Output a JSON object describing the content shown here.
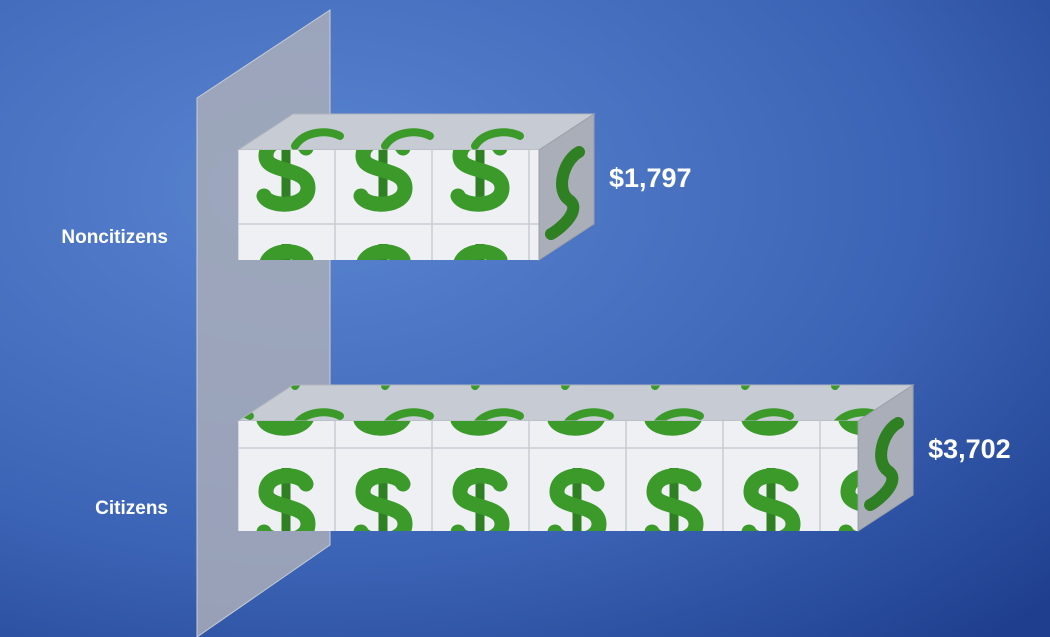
{
  "chart_data": {
    "type": "bar",
    "orientation": "horizontal",
    "categories": [
      "Noncitizens",
      "Citizens"
    ],
    "values": [
      1797,
      3702
    ],
    "value_labels": [
      "$1,797",
      "$3,702"
    ]
  }
}
